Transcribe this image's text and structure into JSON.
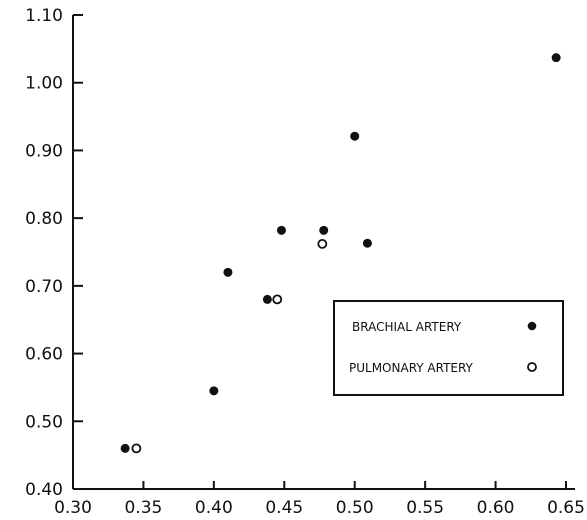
{
  "chart_data": {
    "type": "scatter",
    "title": "",
    "xlabel": "",
    "ylabel": "",
    "xlim": [
      0.3,
      0.65
    ],
    "ylim": [
      0.4,
      1.1
    ],
    "grid": false,
    "legend_position": "right",
    "x_ticks": [
      "0.30",
      "0.35",
      "0.40",
      "0.45",
      "0.50",
      "0.55",
      "0.60",
      "0.65"
    ],
    "y_ticks": [
      "0.40",
      "0.50",
      "0.60",
      "0.70",
      "0.80",
      "0.90",
      "1.00",
      "1.10"
    ],
    "series": [
      {
        "name": "BRACHIAL ARTERY",
        "marker": "filled-circle",
        "points": [
          {
            "x": 0.337,
            "y": 0.46
          },
          {
            "x": 0.4,
            "y": 0.545
          },
          {
            "x": 0.41,
            "y": 0.72
          },
          {
            "x": 0.438,
            "y": 0.68
          },
          {
            "x": 0.448,
            "y": 0.782
          },
          {
            "x": 0.478,
            "y": 0.782
          },
          {
            "x": 0.5,
            "y": 0.921
          },
          {
            "x": 0.509,
            "y": 0.763
          },
          {
            "x": 0.643,
            "y": 1.037
          }
        ]
      },
      {
        "name": "PULMONARY ARTERY",
        "marker": "open-circle",
        "points": [
          {
            "x": 0.345,
            "y": 0.46
          },
          {
            "x": 0.445,
            "y": 0.68
          },
          {
            "x": 0.477,
            "y": 0.762
          }
        ]
      }
    ]
  },
  "colors": {
    "ink": "#111111",
    "background": "#ffffff"
  }
}
